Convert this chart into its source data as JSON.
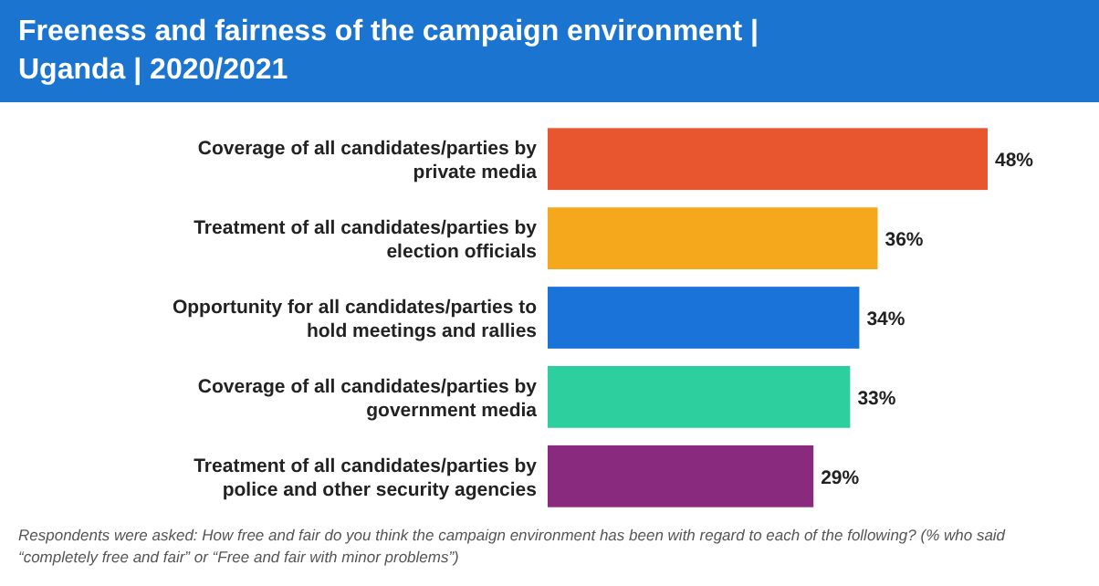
{
  "chart_data": {
    "type": "bar",
    "orientation": "horizontal",
    "title": "Freeness and fairness of the campaign environment | Uganda | 2020/2021",
    "categories": [
      "Coverage of all candidates/parties by private media",
      "Treatment of all candidates/parties by election officials",
      "Opportunity for all candidates/parties to hold meetings and rallies",
      "Coverage of all candidates/parties by government media",
      "Treatment of all candidates/parties by police and other security agencies"
    ],
    "values": [
      48,
      36,
      34,
      33,
      29
    ],
    "colors": [
      "#e8562f",
      "#f6a81c",
      "#1a73d9",
      "#2ecf9f",
      "#8a2a7e"
    ],
    "value_labels": [
      "48%",
      "36%",
      "34%",
      "33%",
      "29%"
    ],
    "annotations": [
      "Respondents were asked: How free and fair do you think the campaign environment has been with regard to each of the following? (% who said “completely free and fair” or “Free and fair with minor problems”)"
    ]
  }
}
